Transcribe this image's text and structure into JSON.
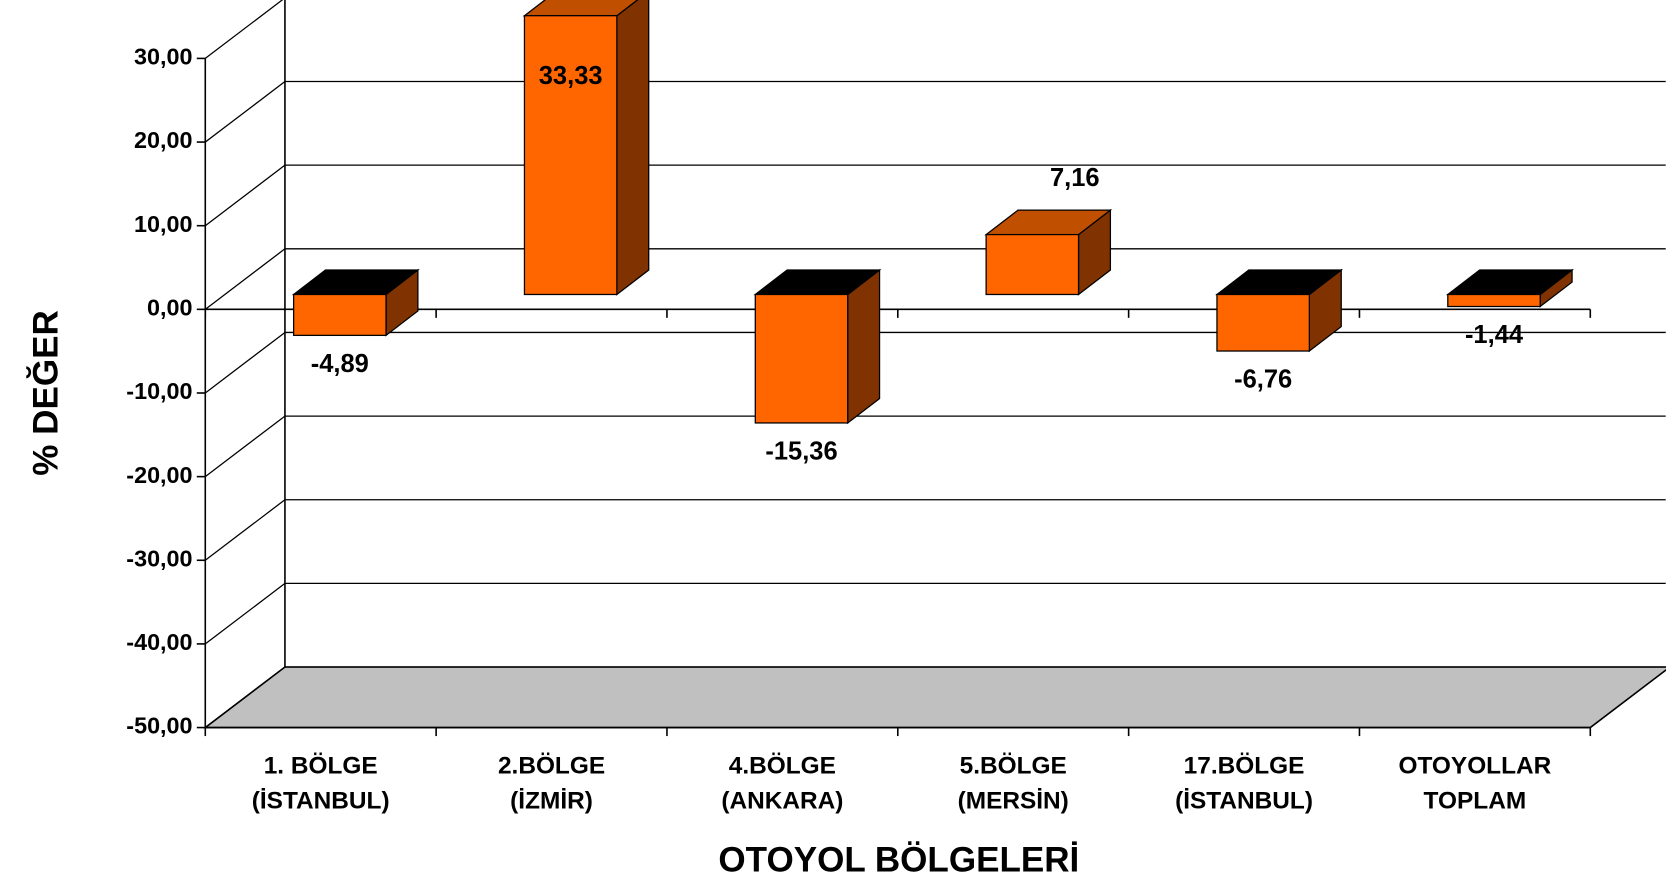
{
  "chart_data": {
    "type": "bar3d",
    "x_label": "OTOYOL BÖLGELERİ",
    "y_label": "% DEĞER",
    "categories": [
      [
        "1. BÖLGE",
        "(İSTANBUL)"
      ],
      [
        "2.BÖLGE",
        "(İZMİR)"
      ],
      [
        "4.BÖLGE",
        "(ANKARA)"
      ],
      [
        "5.BÖLGE",
        "(MERSİN)"
      ],
      [
        "17.BÖLGE",
        "(İSTANBUL)"
      ],
      [
        "OTOYOLLAR",
        "TOPLAM"
      ]
    ],
    "values": [
      -4.89,
      33.33,
      -15.36,
      7.16,
      -6.76,
      -1.44
    ],
    "value_labels": [
      "-4,89",
      "33,33",
      "-15,36",
      "7,16",
      "-6,76",
      "-1,44"
    ],
    "color": "#ff6600",
    "ylim": [
      -50,
      30
    ],
    "yticks": [
      {
        "value": -50,
        "label": "-50,00"
      },
      {
        "value": -40,
        "label": "-40,00"
      },
      {
        "value": -30,
        "label": "-30,00"
      },
      {
        "value": -20,
        "label": "-20,00"
      },
      {
        "value": -10,
        "label": "-10,00"
      },
      {
        "value": 0,
        "label": "0,00"
      },
      {
        "value": 10,
        "label": "10,00"
      },
      {
        "value": 20,
        "label": "20,00"
      },
      {
        "value": 30,
        "label": "30,00"
      }
    ],
    "grid": true
  }
}
